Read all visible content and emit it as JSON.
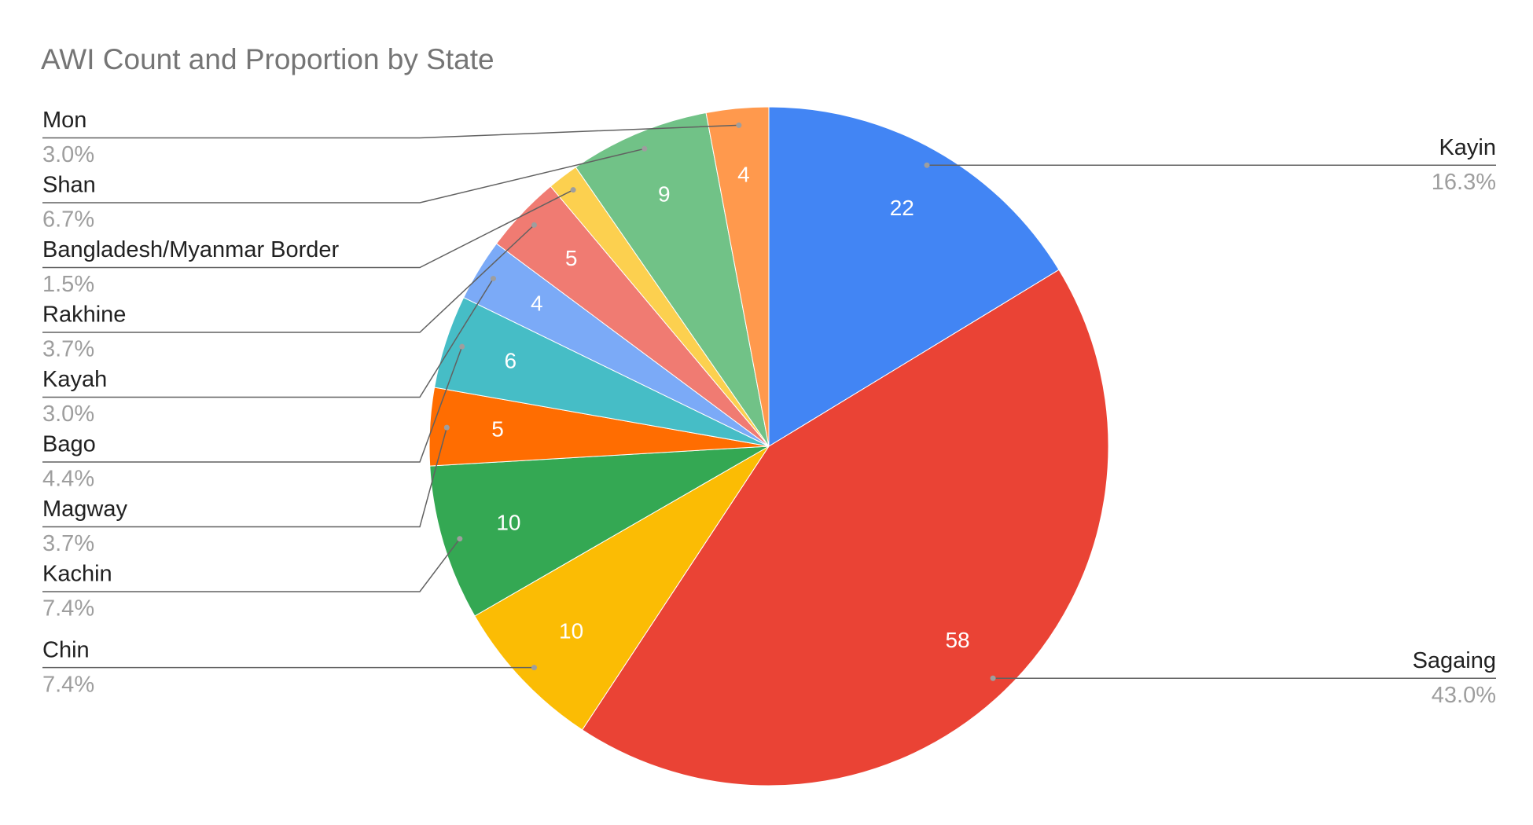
{
  "chart_data": {
    "type": "pie",
    "title": "AWI Count and Proportion by State",
    "categories": [
      "Kayin",
      "Sagaing",
      "Chin",
      "Kachin",
      "Magway",
      "Bago",
      "Kayah",
      "Rakhine",
      "Bangladesh/Myanmar Border",
      "Shan",
      "Mon"
    ],
    "values": [
      22,
      58,
      10,
      10,
      5,
      6,
      4,
      5,
      2,
      9,
      4
    ],
    "percent_labels": [
      "16.3%",
      "43.0%",
      "7.4%",
      "7.4%",
      "3.7%",
      "4.4%",
      "3.0%",
      "3.7%",
      "1.5%",
      "6.7%",
      "3.0%"
    ],
    "colors": [
      "#4285f4",
      "#ea4335",
      "#fbbc04",
      "#34a853",
      "#ff6d01",
      "#46bdc6",
      "#7baaf7",
      "#f07b72",
      "#fcd04f",
      "#71c287",
      "#ff994d"
    ]
  }
}
